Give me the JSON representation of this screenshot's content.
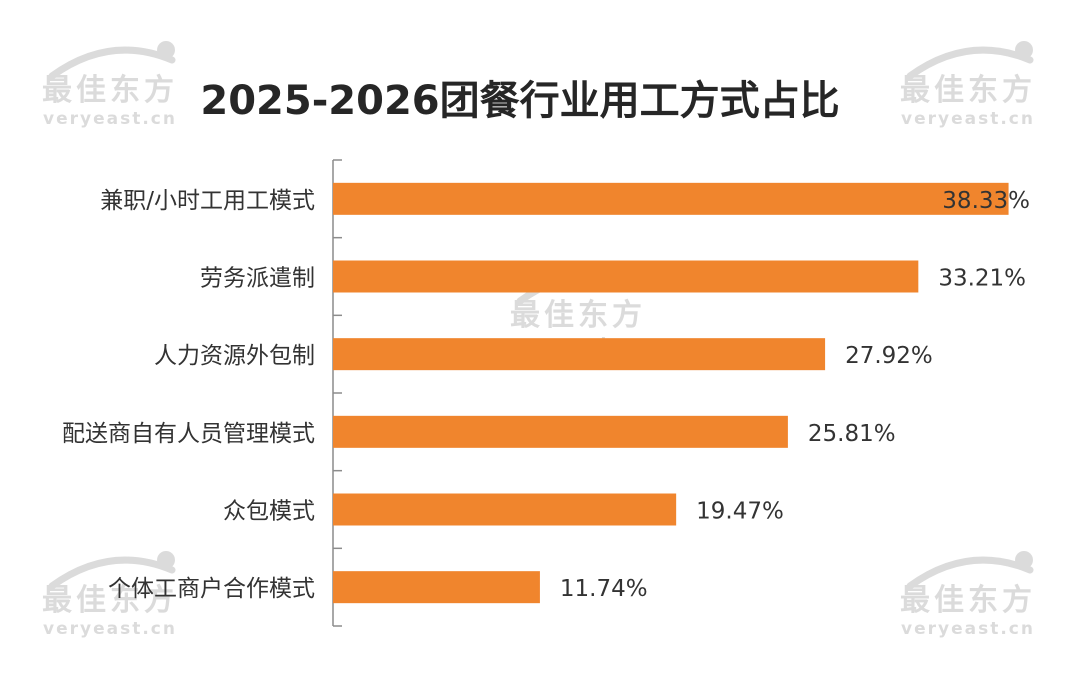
{
  "chart_data": {
    "type": "bar",
    "orientation": "horizontal",
    "title": "2025-2026团餐行业用工方式占比",
    "categories": [
      "兼职/小时工用工模式",
      "劳务派遣制",
      "人力资源外包制",
      "配送商自有人员管理模式",
      "众包模式",
      "个体工商户合作模式"
    ],
    "values": [
      38.33,
      33.21,
      27.92,
      25.81,
      19.47,
      11.74
    ],
    "value_labels": [
      "38.33%",
      "33.21%",
      "27.92%",
      "25.81%",
      "19.47%",
      "11.74%"
    ],
    "unit": "%",
    "xlim": [
      0,
      40
    ],
    "grid": false,
    "legend": "none",
    "bar_color": "#F0852D"
  },
  "watermark": {
    "brand_cn": "最佳东方",
    "brand_en": "veryeast.cn",
    "color": "#D8D8D8"
  },
  "colors": {
    "title": "#262626",
    "label": "#333333",
    "axis": "#8C8C8C"
  }
}
